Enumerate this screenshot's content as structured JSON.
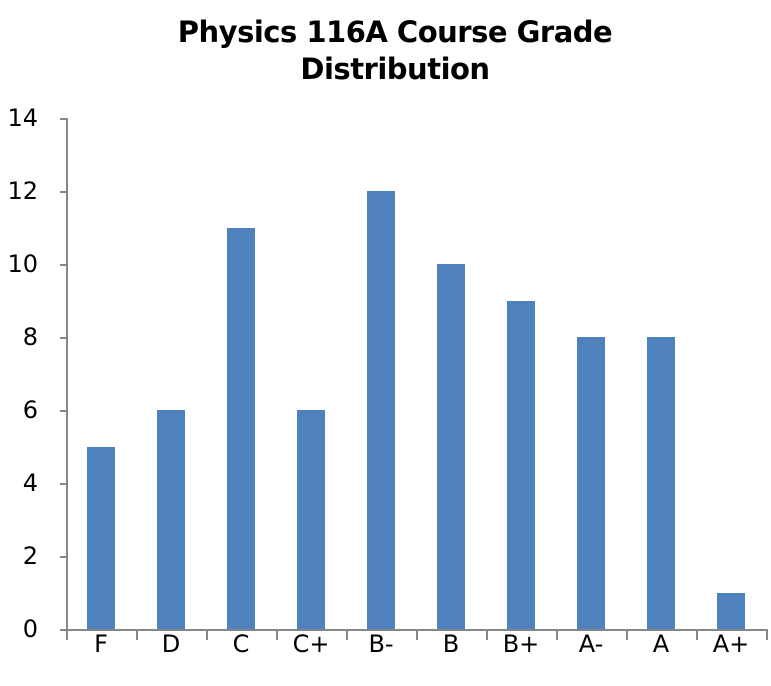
{
  "chart_data": {
    "type": "bar",
    "title": "Physics 116A Course Grade Distribution",
    "title_lines": [
      "Physics 116A Course Grade",
      "Distribution"
    ],
    "xlabel": "",
    "ylabel": "",
    "categories": [
      "F",
      "D",
      "C",
      "C+",
      "B-",
      "B",
      "B+",
      "A-",
      "A",
      "A+"
    ],
    "values": [
      5,
      6,
      11,
      6,
      12,
      10,
      9,
      8,
      8,
      1
    ],
    "ylim": [
      0,
      14
    ],
    "yticks": [
      0,
      2,
      4,
      6,
      8,
      10,
      12,
      14
    ],
    "grid": false,
    "legend": null,
    "bar_color": "#4F81BD",
    "axis_color": "#868686"
  }
}
